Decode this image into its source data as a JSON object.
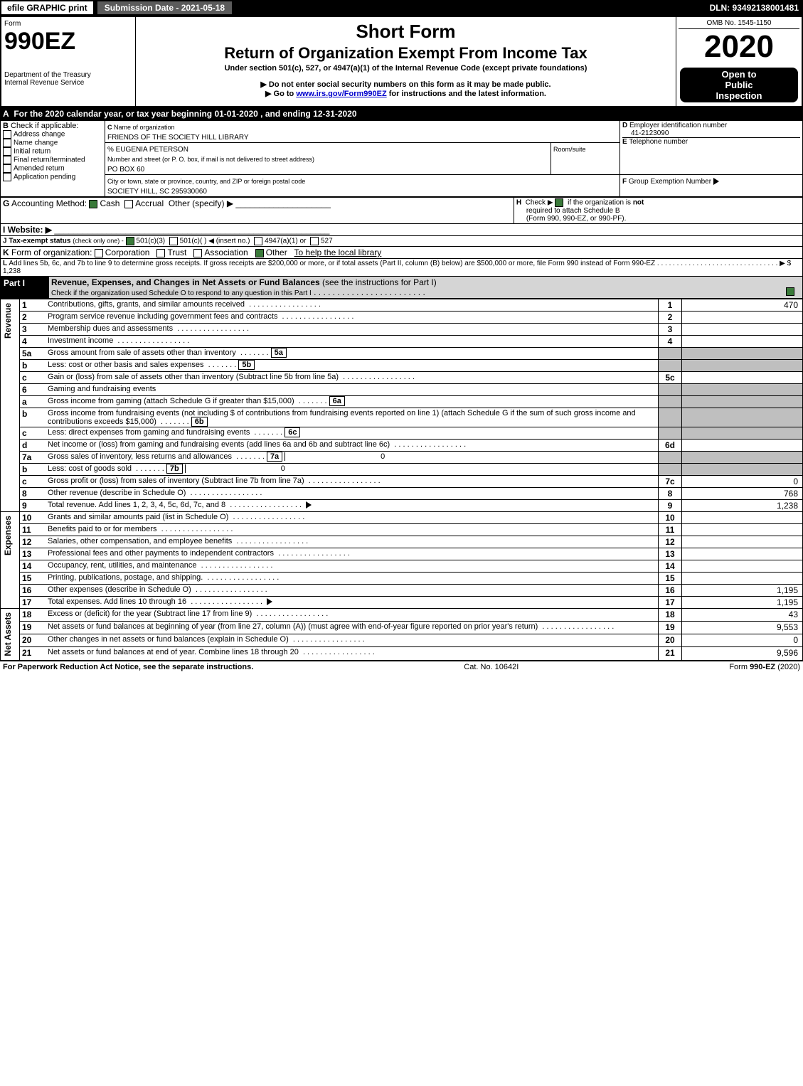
{
  "topbar": {
    "efile": "efile GRAPHIC print",
    "subdate": "Submission Date - 2021-05-18",
    "dln": "DLN: 93492138001481"
  },
  "hdr": {
    "form": "Form",
    "f990": "990EZ",
    "dept": "Department of the Treasury",
    "irs": "Internal Revenue Service",
    "shortform": "Short Form",
    "title": "Return of Organization Exempt From Income Tax",
    "under": "Under section 501(c), 527, or 4947(a)(1) of the Internal Revenue Code (except private foundations)",
    "note1": "▶ Do not enter social security numbers on this form as it may be made public.",
    "note2": "▶ Go to ",
    "note2link": "www.irs.gov/Form990EZ",
    "note2b": " for instructions and the latest information.",
    "omb": "OMB No. 1545-1150",
    "year": "2020",
    "open1": "Open to",
    "open2": "Public",
    "open3": "Inspection"
  },
  "period": "For the 2020 calendar year, or tax year beginning 01-01-2020  , and ending 12-31-2020",
  "B": {
    "label": "Check if applicable:",
    "opts": [
      "Address change",
      "Name change",
      "Initial return",
      "Final return/terminated",
      "Amended return",
      "Application pending"
    ]
  },
  "C": {
    "label": "Name of organization",
    "org": "FRIENDS OF THE SOCIETY HILL LIBRARY",
    "care": "% EUGENIA PETERSON",
    "addrlabel": "Number and street (or P. O. box, if mail is not delivered to street address)",
    "room": "Room/suite",
    "addr": "PO BOX 60",
    "citylabel": "City or town, state or province, country, and ZIP or foreign postal code",
    "city": "SOCIETY HILL, SC  295930060"
  },
  "D": {
    "label": "Employer identification number",
    "ein": "41-2123090"
  },
  "E": {
    "label": "Telephone number"
  },
  "F": {
    "label": "Group Exemption Number",
    "tri": "▶"
  },
  "G": {
    "label": "Accounting Method:",
    "cash": "Cash",
    "accr": "Accrual",
    "other": "Other (specify) ▶"
  },
  "H": {
    "text": "Check ▶",
    "text2": "if the organization is ",
    "not": "not",
    "text3": "required to attach Schedule B",
    "text4": "(Form 990, 990-EZ, or 990-PF)."
  },
  "I": {
    "label": "Website: ▶"
  },
  "J": {
    "label": "Tax-exempt status",
    "rest": "(check only one) -",
    "o1": "501(c)(3)",
    "o2": "501(c)(  )",
    "ins": "◀ (insert no.)",
    "o3": "4947(a)(1) or",
    "o4": "527"
  },
  "K": {
    "label": "Form of organization:",
    "opts": [
      "Corporation",
      "Trust",
      "Association",
      "Other"
    ],
    "other": "To help the local library"
  },
  "L": {
    "text": "Add lines 5b, 6c, and 7b to line 9 to determine gross receipts. If gross receipts are $200,000 or more, or if total assets (Part II, column (B) below) are $500,000 or more, file Form 990 instead of Form 990-EZ",
    "amt": "▶ $ 1,238"
  },
  "partI": {
    "num": "Part I",
    "title": "Revenue, Expenses, and Changes in Net Assets or Fund Balances",
    "subtitle": "(see the instructions for Part I)",
    "check": "Check if the organization used Schedule O to respond to any question in this Part I"
  },
  "sections": {
    "rev": "Revenue",
    "exp": "Expenses",
    "na": "Net Assets"
  },
  "lines": [
    {
      "n": "1",
      "t": "Contributions, gifts, grants, and similar amounts received",
      "box": "1",
      "v": "470"
    },
    {
      "n": "2",
      "t": "Program service revenue including government fees and contracts",
      "box": "2",
      "v": ""
    },
    {
      "n": "3",
      "t": "Membership dues and assessments",
      "box": "3",
      "v": ""
    },
    {
      "n": "4",
      "t": "Investment income",
      "box": "4",
      "v": ""
    },
    {
      "n": "5a",
      "t": "Gross amount from sale of assets other than inventory",
      "mid": "5a",
      "midv": ""
    },
    {
      "n": "b",
      "t": "Less: cost or other basis and sales expenses",
      "mid": "5b",
      "midv": ""
    },
    {
      "n": "c",
      "t": "Gain or (loss) from sale of assets other than inventory (Subtract line 5b from line 5a)",
      "box": "5c",
      "v": ""
    },
    {
      "n": "6",
      "t": "Gaming and fundraising events"
    },
    {
      "n": "a",
      "t": "Gross income from gaming (attach Schedule G if greater than $15,000)",
      "mid": "6a",
      "midv": ""
    },
    {
      "n": "b",
      "t": "Gross income from fundraising events (not including $                         of contributions from fundraising events reported on line 1) (attach Schedule G if the sum of such gross income and contributions exceeds $15,000)",
      "mid": "6b",
      "midv": ""
    },
    {
      "n": "c",
      "t": "Less: direct expenses from gaming and fundraising events",
      "mid": "6c",
      "midv": ""
    },
    {
      "n": "d",
      "t": "Net income or (loss) from gaming and fundraising events (add lines 6a and 6b and subtract line 6c)",
      "box": "6d",
      "v": ""
    },
    {
      "n": "7a",
      "t": "Gross sales of inventory, less returns and allowances",
      "mid": "7a",
      "midv": "0"
    },
    {
      "n": "b",
      "t": "Less: cost of goods sold",
      "mid": "7b",
      "midv": "0"
    },
    {
      "n": "c",
      "t": "Gross profit or (loss) from sales of inventory (Subtract line 7b from line 7a)",
      "box": "7c",
      "v": "0"
    },
    {
      "n": "8",
      "t": "Other revenue (describe in Schedule O)",
      "box": "8",
      "v": "768"
    },
    {
      "n": "9",
      "t": "Total revenue. Add lines 1, 2, 3, 4, 5c, 6d, 7c, and 8",
      "box": "9",
      "v": "1,238",
      "bold": true,
      "tri": true
    },
    {
      "n": "10",
      "t": "Grants and similar amounts paid (list in Schedule O)",
      "box": "10",
      "v": ""
    },
    {
      "n": "11",
      "t": "Benefits paid to or for members",
      "box": "11",
      "v": ""
    },
    {
      "n": "12",
      "t": "Salaries, other compensation, and employee benefits",
      "box": "12",
      "v": ""
    },
    {
      "n": "13",
      "t": "Professional fees and other payments to independent contractors",
      "box": "13",
      "v": ""
    },
    {
      "n": "14",
      "t": "Occupancy, rent, utilities, and maintenance",
      "box": "14",
      "v": ""
    },
    {
      "n": "15",
      "t": "Printing, publications, postage, and shipping.",
      "box": "15",
      "v": ""
    },
    {
      "n": "16",
      "t": "Other expenses (describe in Schedule O)",
      "box": "16",
      "v": "1,195"
    },
    {
      "n": "17",
      "t": "Total expenses. Add lines 10 through 16",
      "box": "17",
      "v": "1,195",
      "bold": true,
      "tri": true
    },
    {
      "n": "18",
      "t": "Excess or (deficit) for the year (Subtract line 17 from line 9)",
      "box": "18",
      "v": "43"
    },
    {
      "n": "19",
      "t": "Net assets or fund balances at beginning of year (from line 27, column (A)) (must agree with end-of-year figure reported on prior year's return)",
      "box": "19",
      "v": "9,553"
    },
    {
      "n": "20",
      "t": "Other changes in net assets or fund balances (explain in Schedule O)",
      "box": "20",
      "v": "0"
    },
    {
      "n": "21",
      "t": "Net assets or fund balances at end of year. Combine lines 18 through 20",
      "box": "21",
      "v": "9,596"
    }
  ],
  "footer": {
    "left": "For Paperwork Reduction Act Notice, see the separate instructions.",
    "mid": "Cat. No. 10642I",
    "right": "Form 990-EZ (2020)",
    "rightbold": "990-EZ"
  }
}
